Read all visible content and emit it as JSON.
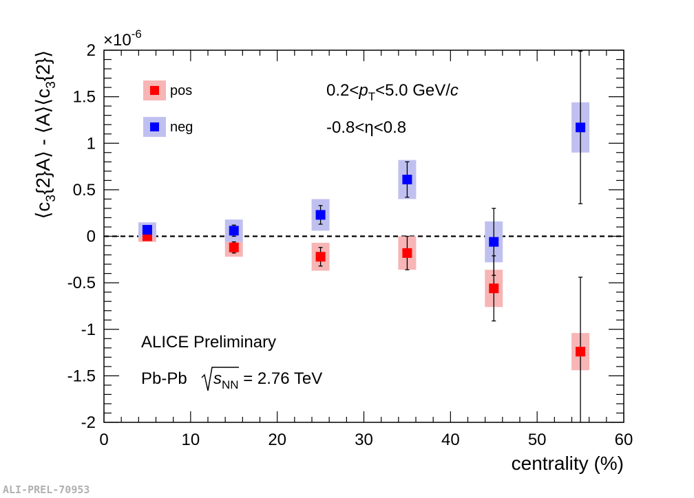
{
  "chart_data": {
    "type": "scatter",
    "xlabel": "centrality (%)",
    "ylabel_parts": {
      "open1": "⟨c",
      "sub1": "3",
      "mid1": "{2}A⟩ - ⟨A⟩⟨c",
      "sub2": "3",
      "close": "{2}⟩"
    },
    "y_multiplier": {
      "base": "×10",
      "exp": "-6"
    },
    "xlim": [
      0,
      60
    ],
    "ylim": [
      -2,
      2
    ],
    "x_ticks": [
      0,
      10,
      20,
      30,
      40,
      50,
      60
    ],
    "y_ticks": [
      -2,
      -1.5,
      -1,
      -0.5,
      0,
      0.5,
      1,
      1.5,
      2
    ],
    "series": [
      {
        "name": "pos",
        "color": "#ff0000",
        "sys_color": "#f7b5b5",
        "x": [
          5,
          15,
          25,
          35,
          45,
          55
        ],
        "y": [
          0.0,
          -0.12,
          -0.22,
          -0.18,
          -0.56,
          -1.24
        ],
        "stat_err": [
          0.03,
          0.06,
          0.1,
          0.18,
          0.35,
          0.8
        ],
        "sys_err": [
          0.06,
          0.1,
          0.15,
          0.18,
          0.2,
          0.2
        ]
      },
      {
        "name": "neg",
        "color": "#0000ff",
        "sys_color": "#c0c0f0",
        "x": [
          5,
          15,
          25,
          35,
          45,
          55
        ],
        "y": [
          0.07,
          0.06,
          0.23,
          0.61,
          -0.06,
          1.17
        ],
        "stat_err": [
          0.03,
          0.06,
          0.1,
          0.19,
          0.36,
          0.82
        ],
        "sys_err": [
          0.08,
          0.12,
          0.17,
          0.21,
          0.22,
          0.27
        ]
      }
    ],
    "legend_position": "top-left",
    "reference_line": 0,
    "annotations": {
      "pt_prefix": "0.2<",
      "pt_var": "p",
      "pt_sub": "T",
      "pt_mid": "<5.0 GeV/",
      "pt_c": "c",
      "eta": "-0.8<η<0.8",
      "experiment": "ALICE Preliminary",
      "system_prefix": "Pb-Pb",
      "sqrt_s": "s",
      "sqrt_sub": "NN",
      "energy": " = 2.76 TeV"
    }
  },
  "watermark": "ALI-PREL-70953"
}
